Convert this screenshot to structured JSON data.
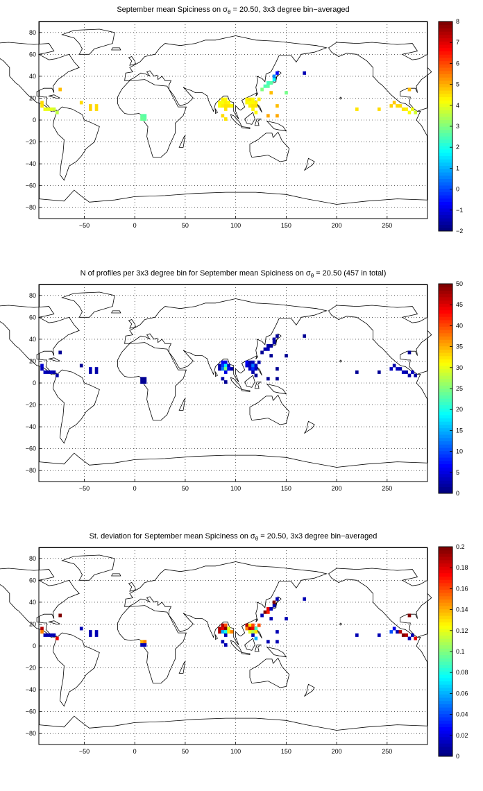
{
  "panels": [
    {
      "title_pre": "September mean Spiciness on σ",
      "title_sub": "θ",
      "title_post": " = 20.50, 3x3 degree bin−averaged",
      "colorbar_ticks": [
        "8",
        "7",
        "6",
        "5",
        "4",
        "3",
        "2",
        "1",
        "0",
        "−1",
        "−2"
      ]
    },
    {
      "title_pre": "N of profiles per 3x3 degree bin for September mean Spiciness on σ",
      "title_sub": "θ",
      "title_post": " = 20.50 (457 in total)",
      "colorbar_ticks": [
        "50",
        "45",
        "40",
        "35",
        "30",
        "25",
        "20",
        "15",
        "10",
        "5",
        "0"
      ]
    },
    {
      "title_pre": "St. deviation for September mean Spiciness on σ",
      "title_sub": "θ",
      "title_post": " = 20.50, 3x3 degree bin−averaged",
      "colorbar_ticks": [
        "0.2",
        "0.18",
        "0.16",
        "0.14",
        "0.12",
        "0.1",
        "0.08",
        "0.06",
        "0.04",
        "0.02",
        "0"
      ]
    }
  ],
  "axes": {
    "x_ticks": [
      "−50",
      "0",
      "50",
      "100",
      "150",
      "200",
      "250"
    ],
    "y_ticks": [
      "80",
      "60",
      "40",
      "20",
      "0",
      "−20",
      "−40",
      "−60",
      "−80"
    ]
  },
  "chart_data": {
    "type": "heatmap",
    "lon_range": [
      -95,
      290
    ],
    "lat_range": [
      -90,
      90
    ],
    "cmin": [
      -2,
      0,
      0
    ],
    "cmax": [
      8,
      50,
      0.2
    ],
    "cells": [
      {
        "lon": -92,
        "lat": 16,
        "v": [
          4.6,
          4,
          0.19
        ]
      },
      {
        "lon": -92,
        "lat": 13,
        "v": [
          4.5,
          3,
          0.15
        ]
      },
      {
        "lon": -89,
        "lat": 10,
        "v": [
          4.1,
          3,
          0.01
        ]
      },
      {
        "lon": -86,
        "lat": 10,
        "v": [
          4.0,
          2,
          0.01
        ]
      },
      {
        "lon": -83,
        "lat": 10,
        "v": [
          4.0,
          3,
          0.01
        ]
      },
      {
        "lon": -80,
        "lat": 10,
        "v": [
          3.8,
          2,
          0.01
        ]
      },
      {
        "lon": -77,
        "lat": 7,
        "v": [
          3.6,
          2,
          0.18
        ]
      },
      {
        "lon": -74,
        "lat": 28,
        "v": [
          4.9,
          1,
          0.2
        ]
      },
      {
        "lon": -53,
        "lat": 16,
        "v": [
          4.6,
          1,
          0.01
        ]
      },
      {
        "lon": -44,
        "lat": 10,
        "v": [
          4.7,
          2,
          0.01
        ]
      },
      {
        "lon": -44,
        "lat": 13,
        "v": [
          4.7,
          3,
          0.01
        ]
      },
      {
        "lon": -38,
        "lat": 10,
        "v": [
          4.6,
          2,
          0.01
        ]
      },
      {
        "lon": -38,
        "lat": 13,
        "v": [
          4.6,
          2,
          0.01
        ]
      },
      {
        "lon": 7,
        "lat": 4,
        "v": [
          2.7,
          1,
          0.14
        ]
      },
      {
        "lon": 10,
        "lat": 4,
        "v": [
          2.6,
          1,
          0.15
        ]
      },
      {
        "lon": 7,
        "lat": 1,
        "v": [
          2.8,
          1,
          0.01
        ]
      },
      {
        "lon": 10,
        "lat": 1,
        "v": [
          2.7,
          1,
          0.01
        ]
      },
      {
        "lon": 84,
        "lat": 16,
        "v": [
          4.3,
          2,
          0.19
        ]
      },
      {
        "lon": 87,
        "lat": 19,
        "v": [
          4.4,
          6,
          0.19
        ]
      },
      {
        "lon": 90,
        "lat": 19,
        "v": [
          4.3,
          5,
          0.16
        ]
      },
      {
        "lon": 87,
        "lat": 16,
        "v": [
          4.2,
          9,
          0.18
        ]
      },
      {
        "lon": 90,
        "lat": 16,
        "v": [
          4.4,
          18,
          0.2
        ]
      },
      {
        "lon": 93,
        "lat": 16,
        "v": [
          4.3,
          3,
          0.12
        ]
      },
      {
        "lon": 84,
        "lat": 13,
        "v": [
          4.2,
          2,
          0.19
        ]
      },
      {
        "lon": 87,
        "lat": 13,
        "v": [
          4.4,
          12,
          0.06
        ]
      },
      {
        "lon": 90,
        "lat": 13,
        "v": [
          4.5,
          25,
          0.08
        ]
      },
      {
        "lon": 93,
        "lat": 13,
        "v": [
          4.5,
          6,
          0.13
        ]
      },
      {
        "lon": 96,
        "lat": 13,
        "v": [
          4.3,
          2,
          0.15
        ]
      },
      {
        "lon": 90,
        "lat": 10,
        "v": [
          4.5,
          5,
          0.01
        ]
      },
      {
        "lon": 87,
        "lat": 4,
        "v": [
          4.6,
          2,
          0.01
        ]
      },
      {
        "lon": 90,
        "lat": 1,
        "v": [
          4.5,
          1,
          0.01
        ]
      },
      {
        "lon": 111,
        "lat": 19,
        "v": [
          4.4,
          6,
          0.19
        ]
      },
      {
        "lon": 114,
        "lat": 19,
        "v": [
          4.5,
          2,
          0.13
        ]
      },
      {
        "lon": 117,
        "lat": 19,
        "v": [
          4.3,
          3,
          0.16
        ]
      },
      {
        "lon": 111,
        "lat": 16,
        "v": [
          4.3,
          4,
          0.15
        ]
      },
      {
        "lon": 114,
        "lat": 16,
        "v": [
          4.2,
          3,
          0.19
        ]
      },
      {
        "lon": 117,
        "lat": 16,
        "v": [
          4.3,
          12,
          0.18
        ]
      },
      {
        "lon": 120,
        "lat": 16,
        "v": [
          4.4,
          3,
          0.09
        ]
      },
      {
        "lon": 114,
        "lat": 13,
        "v": [
          4.4,
          3,
          0.12
        ]
      },
      {
        "lon": 117,
        "lat": 13,
        "v": [
          4.5,
          8,
          0.11
        ]
      },
      {
        "lon": 120,
        "lat": 13,
        "v": [
          4.5,
          3,
          0.13
        ]
      },
      {
        "lon": 117,
        "lat": 10,
        "v": [
          4.3,
          2,
          0.01
        ]
      },
      {
        "lon": 120,
        "lat": 7,
        "v": [
          4.3,
          1,
          0.06
        ]
      },
      {
        "lon": 123,
        "lat": 19,
        "v": [
          4.4,
          2,
          0.16
        ]
      },
      {
        "lon": 126,
        "lat": 28,
        "v": [
          3.0,
          1,
          0.01
        ]
      },
      {
        "lon": 129,
        "lat": 31,
        "v": [
          2.5,
          2,
          0.2
        ]
      },
      {
        "lon": 132,
        "lat": 31,
        "v": [
          2.7,
          3,
          0.17
        ]
      },
      {
        "lon": 132,
        "lat": 34,
        "v": [
          2.4,
          2,
          0.18
        ]
      },
      {
        "lon": 135,
        "lat": 34,
        "v": [
          2.6,
          1,
          0.01
        ]
      },
      {
        "lon": 138,
        "lat": 37,
        "v": [
          1.8,
          2,
          0.01
        ]
      },
      {
        "lon": 138,
        "lat": 40,
        "v": [
          0.6,
          2,
          0.2
        ]
      },
      {
        "lon": 141,
        "lat": 43,
        "v": [
          -0.7,
          1,
          0.01
        ]
      },
      {
        "lon": 168,
        "lat": 43,
        "v": [
          -1.5,
          1,
          0.01
        ]
      },
      {
        "lon": 135,
        "lat": 25,
        "v": [
          4.9,
          1,
          0.01
        ]
      },
      {
        "lon": 150,
        "lat": 25,
        "v": [
          2.9,
          1,
          0.01
        ]
      },
      {
        "lon": 132,
        "lat": 4,
        "v": [
          5.1,
          1,
          0.01
        ]
      },
      {
        "lon": 141,
        "lat": 4,
        "v": [
          5.1,
          1,
          0.01
        ]
      },
      {
        "lon": 141,
        "lat": 13,
        "v": [
          4.9,
          1,
          0.01
        ]
      },
      {
        "lon": 220,
        "lat": 10,
        "v": [
          4.5,
          1,
          0.01
        ]
      },
      {
        "lon": 242,
        "lat": 10,
        "v": [
          4.6,
          1,
          0.01
        ]
      },
      {
        "lon": 254,
        "lat": 13,
        "v": [
          4.7,
          3,
          0.04
        ]
      },
      {
        "lon": 257,
        "lat": 16,
        "v": [
          4.8,
          2,
          0.02
        ]
      },
      {
        "lon": 260,
        "lat": 13,
        "v": [
          4.6,
          3,
          0.01
        ]
      },
      {
        "lon": 263,
        "lat": 13,
        "v": [
          4.6,
          2,
          0.19
        ]
      },
      {
        "lon": 266,
        "lat": 10,
        "v": [
          4.5,
          3,
          0.2
        ]
      },
      {
        "lon": 269,
        "lat": 10,
        "v": [
          4.4,
          2,
          0.19
        ]
      },
      {
        "lon": 272,
        "lat": 7,
        "v": [
          4.2,
          2,
          0.01
        ]
      },
      {
        "lon": 275,
        "lat": 10,
        "v": [
          4.1,
          3,
          0.01
        ]
      },
      {
        "lon": 278,
        "lat": 7,
        "v": [
          3.8,
          2,
          0.18
        ]
      },
      {
        "lon": 272,
        "lat": 28,
        "v": [
          4.9,
          1,
          0.2
        ]
      }
    ]
  }
}
